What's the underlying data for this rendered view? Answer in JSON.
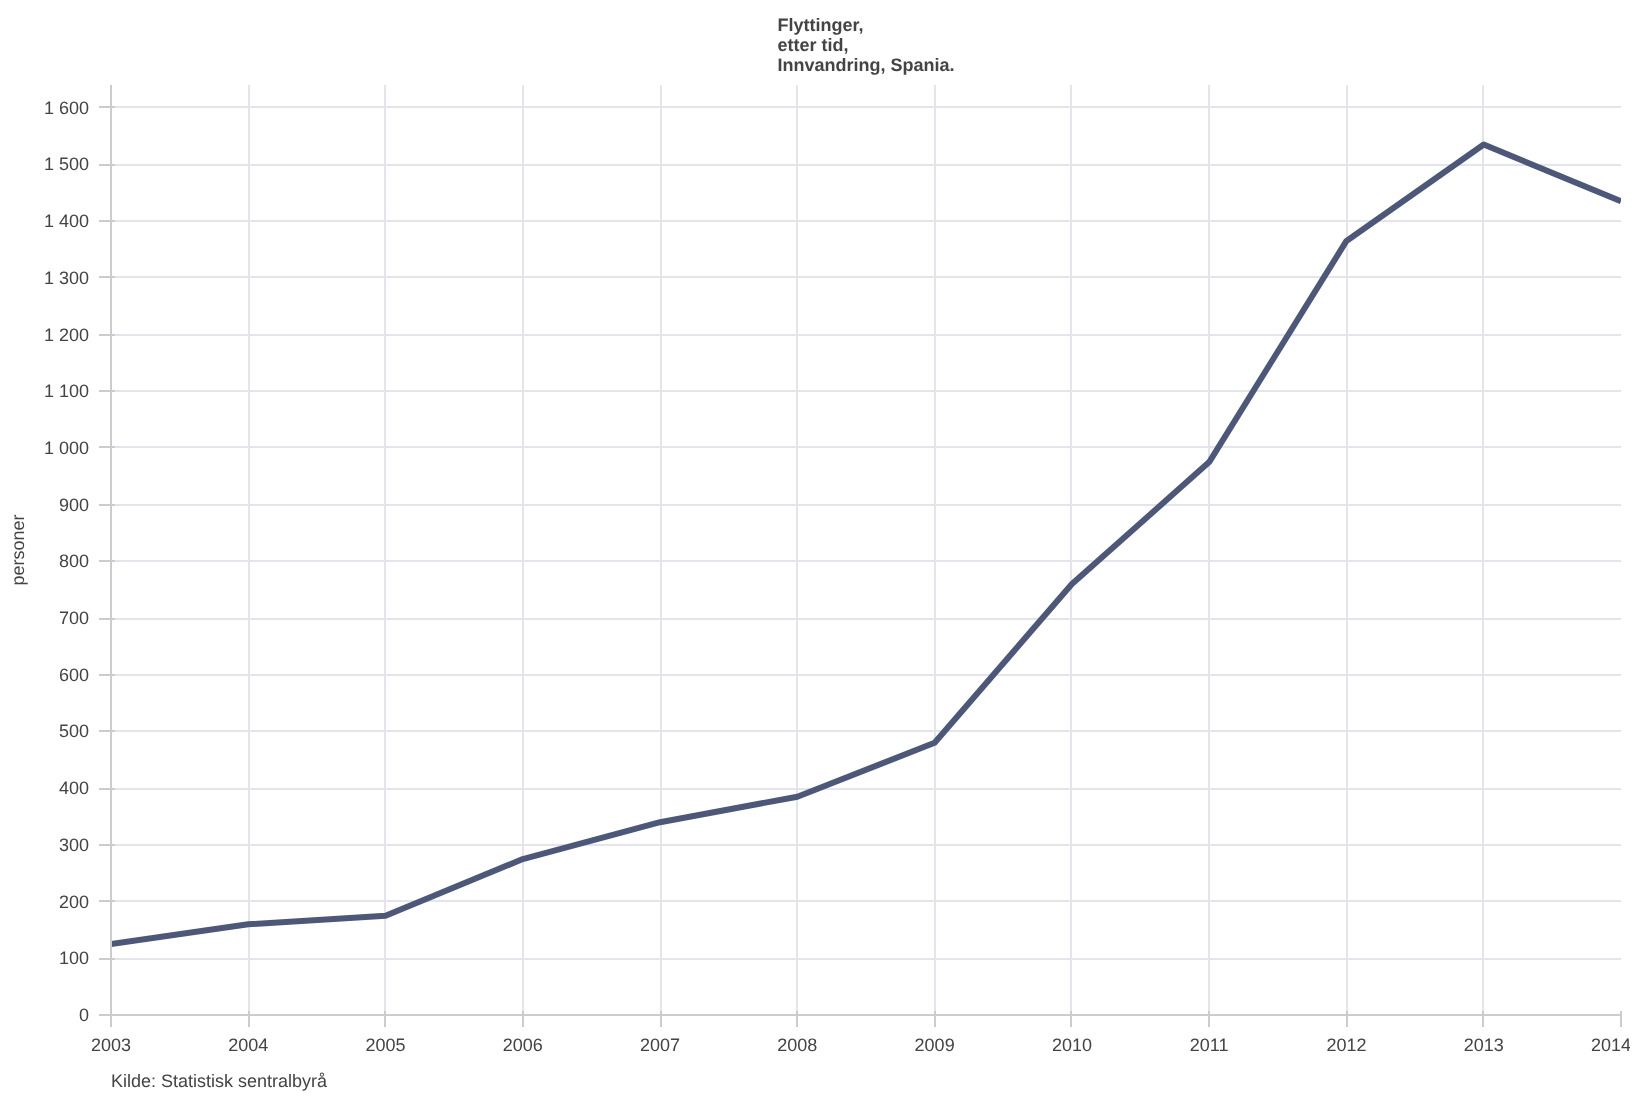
{
  "chart_data": {
    "type": "line",
    "title": "Flyttinger,\netter tid,\nInnvandring, Spania.",
    "ylabel": "personer",
    "x": [
      2003,
      2004,
      2005,
      2006,
      2007,
      2008,
      2009,
      2010,
      2011,
      2012,
      2013,
      2014
    ],
    "series": [
      {
        "color": "#4d5878",
        "values": [
          125,
          160,
          175,
          275,
          340,
          385,
          480,
          760,
          975,
          1365,
          1535,
          1435
        ]
      }
    ],
    "xlim": [
      2003,
      2014
    ],
    "xticks": [
      2003,
      2004,
      2005,
      2006,
      2007,
      2008,
      2009,
      2010,
      2011,
      2012,
      2013,
      2014
    ],
    "ylim": [
      0,
      1640
    ],
    "yticks": [
      0,
      100,
      200,
      300,
      400,
      500,
      600,
      700,
      800,
      900,
      {
        "value": 1000,
        "label": "1 000"
      },
      {
        "value": 1100,
        "label": "1 100"
      },
      {
        "value": 1200,
        "label": "1 200"
      },
      {
        "value": 1300,
        "label": "1 300"
      },
      {
        "value": 1400,
        "label": "1 400"
      },
      {
        "value": 1500,
        "label": "1 500"
      },
      {
        "value": 1600,
        "label": "1 600"
      }
    ],
    "grid": true,
    "marker": "none",
    "line_style": "solid",
    "annotations": [
      "Kilde: Statistisk sentralbyrå"
    ]
  }
}
